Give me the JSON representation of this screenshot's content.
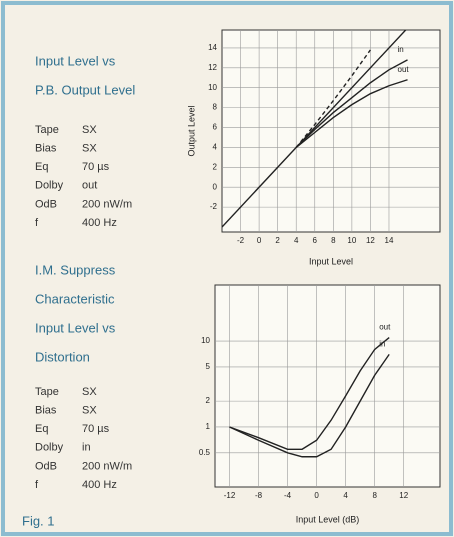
{
  "panel_top": {
    "title_lines": [
      "Input Level vs",
      "P.B. Output Level"
    ],
    "params": [
      [
        "Tape",
        "SX"
      ],
      [
        "Bias",
        "SX"
      ],
      [
        "Eq",
        "70 µs"
      ],
      [
        "Dolby",
        "out"
      ],
      [
        "OdB",
        "200 nW/m"
      ],
      [
        "f",
        "400 Hz"
      ]
    ]
  },
  "panel_bottom": {
    "title_lines": [
      "I.M. Suppress",
      "Characteristic",
      "Input Level vs",
      "Distortion"
    ],
    "params": [
      [
        "Tape",
        "SX"
      ],
      [
        "Bias",
        "SX"
      ],
      [
        "Eq",
        "70 µs"
      ],
      [
        "Dolby",
        "in"
      ],
      [
        "OdB",
        "200 nW/m"
      ],
      [
        "f",
        "400 Hz"
      ]
    ]
  },
  "caption": "Fig. 1",
  "chart_data": [
    {
      "type": "line",
      "xlabel": "Input Level",
      "ylabel": "Output Level",
      "color": "#222",
      "xlim": [
        -4,
        19.5
      ],
      "ylim": [
        -4.5,
        15.8
      ],
      "xticks": [
        -2,
        0,
        2,
        4,
        6,
        8,
        10,
        12,
        14
      ],
      "yticks": [
        -2,
        0,
        2,
        4,
        6,
        8,
        10,
        12,
        14
      ],
      "grid": true,
      "log_y": false,
      "series": [
        {
          "x": [
            -4,
            16
          ],
          "values": [
            -4,
            16
          ],
          "dashed": false
        },
        {
          "x": [
            4,
            6,
            8,
            10,
            12
          ],
          "values": [
            4,
            6.3,
            8.7,
            11.2,
            13.8
          ],
          "dashed": true
        },
        {
          "name": "in",
          "x": [
            4,
            6,
            8,
            10,
            12,
            14,
            16
          ],
          "values": [
            4,
            5.8,
            7.5,
            9,
            10.5,
            11.8,
            12.8
          ],
          "dashed": false
        },
        {
          "name": "out",
          "x": [
            4,
            6,
            8,
            10,
            12,
            14,
            16
          ],
          "values": [
            4,
            5.5,
            7,
            8.3,
            9.4,
            10.2,
            10.8
          ],
          "dashed": false
        }
      ]
    },
    {
      "type": "line",
      "xlabel": "Input Level (dB)",
      "color": "#222",
      "xlim": [
        -14,
        17
      ],
      "ylim": [
        0.2,
        45
      ],
      "xticks": [
        -12,
        -8,
        -4,
        0,
        4,
        8,
        12
      ],
      "yticks": [
        0.5,
        1,
        2,
        5,
        10
      ],
      "grid": true,
      "log_y": true,
      "series": [
        {
          "name": "out",
          "x": [
            -12,
            -8,
            -4,
            -2,
            0,
            2,
            4,
            6,
            8,
            10
          ],
          "values": [
            1,
            0.75,
            0.55,
            0.55,
            0.7,
            1.2,
            2.3,
            4.5,
            8,
            11
          ],
          "dashed": false
        },
        {
          "name": "in",
          "x": [
            -12,
            -8,
            -4,
            -2,
            0,
            2,
            4,
            6,
            8,
            10
          ],
          "values": [
            1,
            0.7,
            0.5,
            0.45,
            0.45,
            0.55,
            1,
            2,
            4,
            7
          ],
          "dashed": false
        }
      ]
    }
  ]
}
